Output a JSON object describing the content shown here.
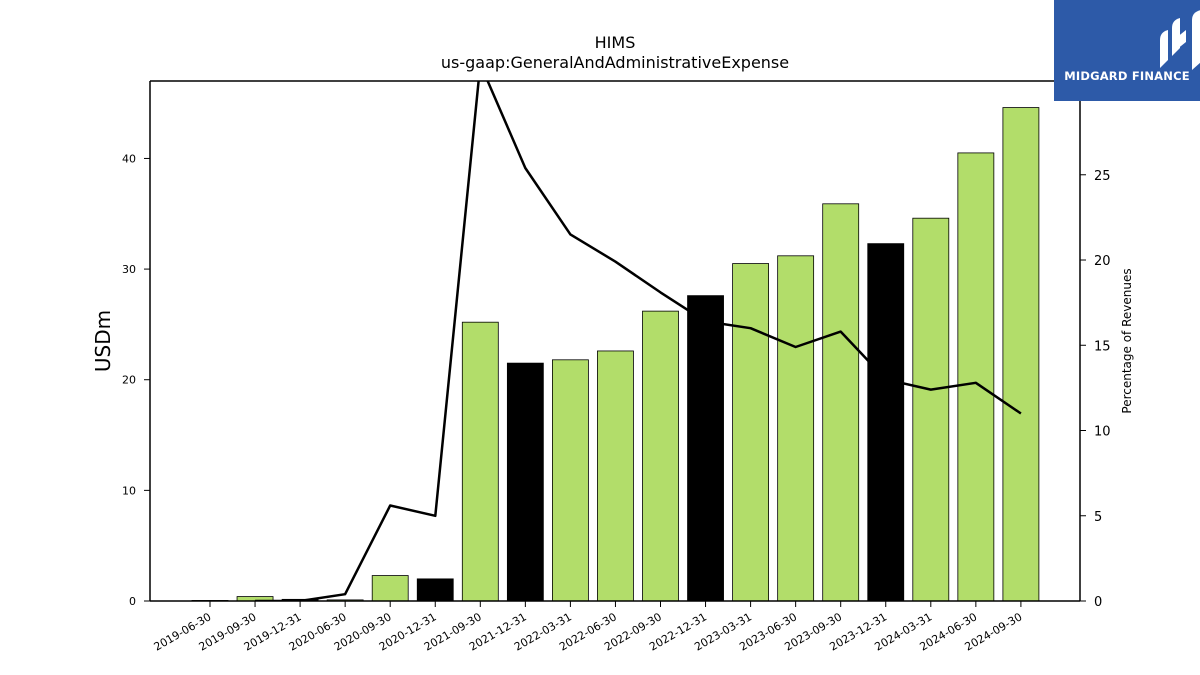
{
  "logo": {
    "text": "MIDGARD FINANCE",
    "background": "#2d5aa8"
  },
  "chart_data": {
    "type": "bar",
    "title": "HIMS",
    "subtitle": "us-gaap:GeneralAndAdministrativeExpense",
    "ylabel": "USDm",
    "y2label": "Percentage of Revenues",
    "ylim": [
      0,
      47
    ],
    "y2lim": [
      0,
      30.5
    ],
    "yticks": [
      0,
      10,
      20,
      30,
      40
    ],
    "y2ticks": [
      0,
      5,
      10,
      15,
      20,
      25
    ],
    "categories": [
      "2019-06-30",
      "2019-09-30",
      "2019-12-31",
      "2020-06-30",
      "2020-09-30",
      "2020-12-31",
      "2021-09-30",
      "2021-12-31",
      "2022-03-31",
      "2022-06-30",
      "2022-09-30",
      "2022-12-31",
      "2023-03-31",
      "2023-06-30",
      "2023-09-30",
      "2023-12-31",
      "2024-03-31",
      "2024-06-30",
      "2024-09-30"
    ],
    "series": [
      {
        "type": "bar",
        "axis": "left",
        "values": [
          0.05,
          0.4,
          0.15,
          0.1,
          2.3,
          2.0,
          25.2,
          21.5,
          21.8,
          22.6,
          26.2,
          27.6,
          30.5,
          31.2,
          35.9,
          32.3,
          34.6,
          40.5,
          44.6
        ],
        "colors": [
          "#b2dd6a",
          "#b2dd6a",
          "#000000",
          "#b2dd6a",
          "#b2dd6a",
          "#000000",
          "#b2dd6a",
          "#000000",
          "#b2dd6a",
          "#b2dd6a",
          "#b2dd6a",
          "#000000",
          "#b2dd6a",
          "#b2dd6a",
          "#b2dd6a",
          "#000000",
          "#b2dd6a",
          "#b2dd6a",
          "#b2dd6a"
        ]
      },
      {
        "type": "line",
        "axis": "right",
        "color": "#000000",
        "values": [
          null,
          0.0,
          0.0,
          0.4,
          5.6,
          5.0,
          31.5,
          25.4,
          21.5,
          19.9,
          18.1,
          16.4,
          16.0,
          14.9,
          15.8,
          13.0,
          12.4,
          12.8,
          11.0
        ]
      }
    ],
    "grid": false,
    "legend": "none"
  }
}
